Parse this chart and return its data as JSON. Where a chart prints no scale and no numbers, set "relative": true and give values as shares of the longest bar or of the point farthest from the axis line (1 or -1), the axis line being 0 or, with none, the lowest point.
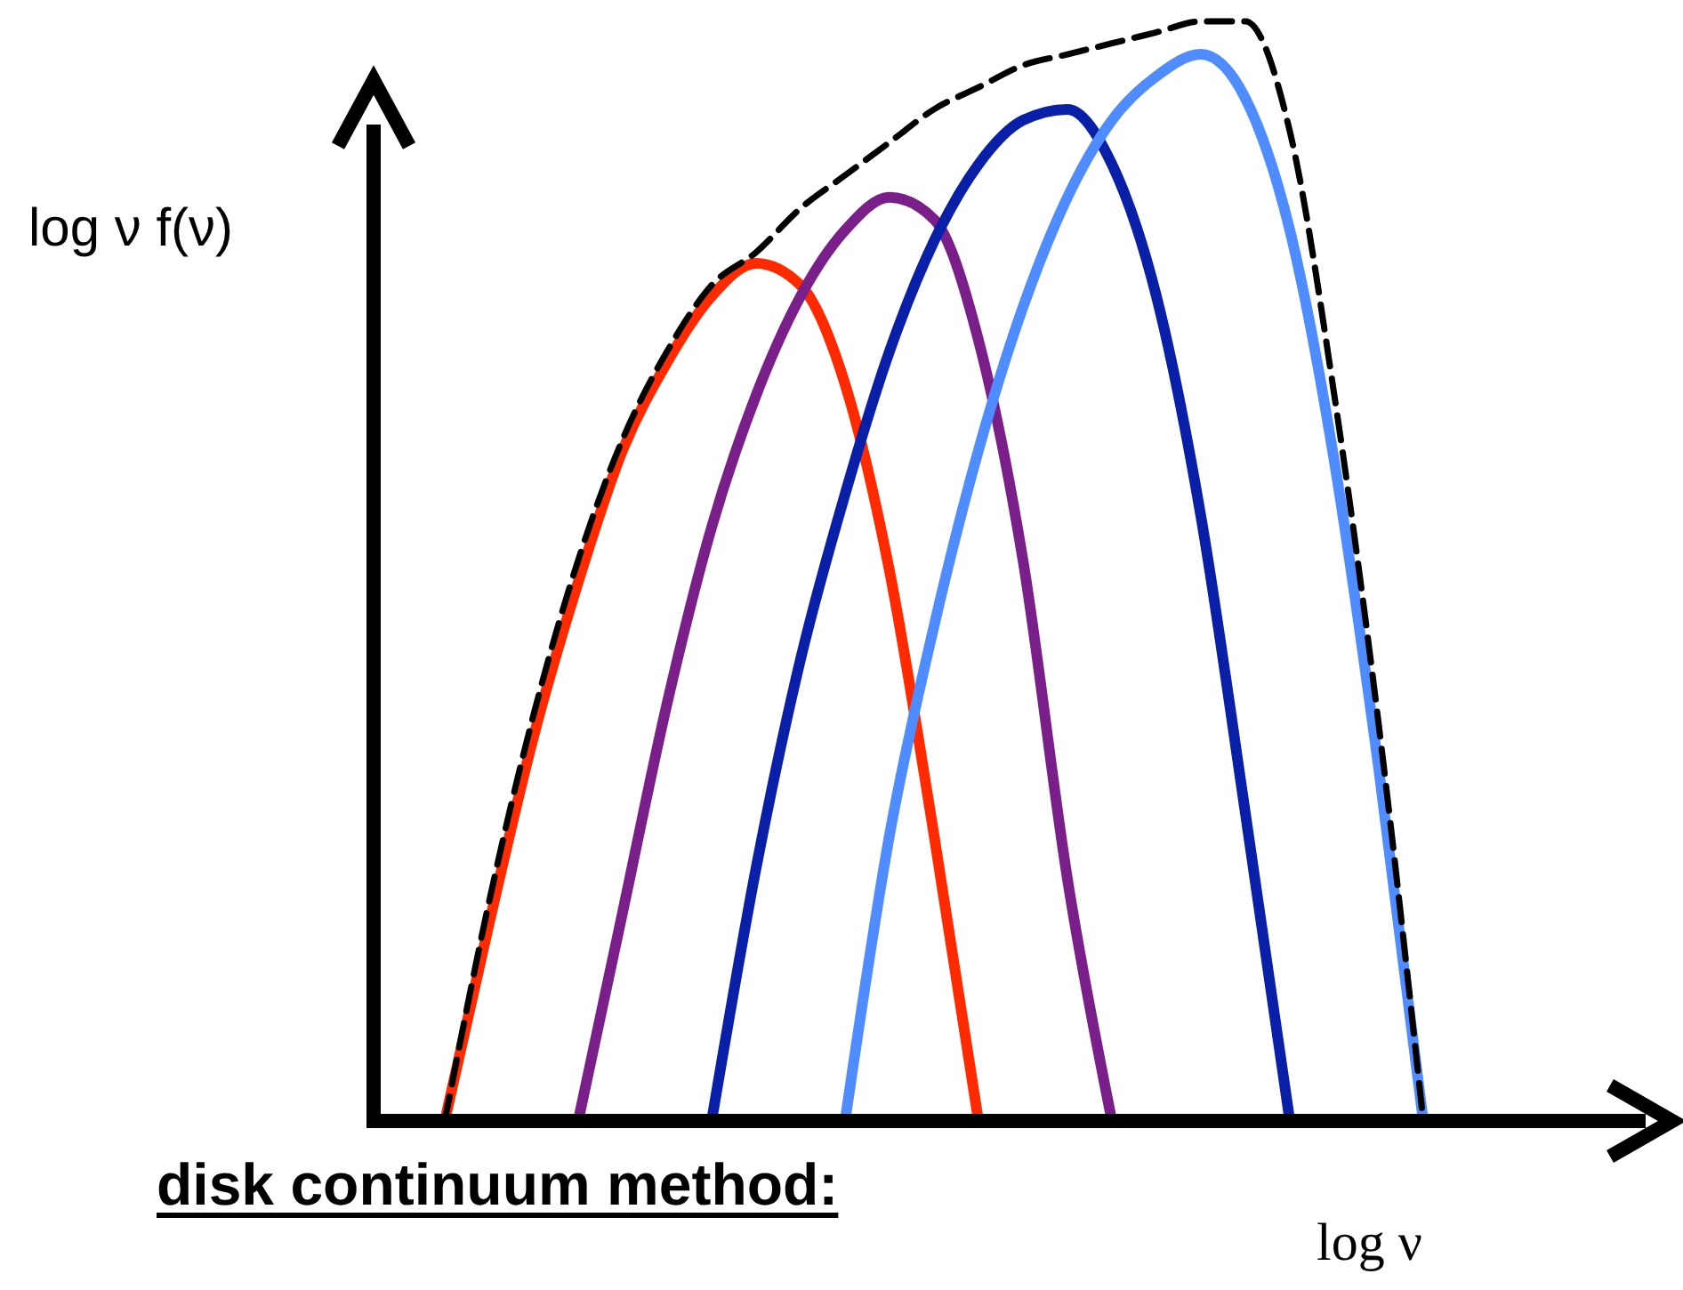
{
  "chart_data": {
    "type": "line",
    "relative": true,
    "ylabel": "log ν f(ν)",
    "xlabel": "log ν",
    "annotations": [
      "disk continuum method:"
    ],
    "categories": [
      null,
      null,
      null,
      null,
      null,
      null,
      null,
      null,
      null,
      null,
      null,
      null,
      null,
      null,
      null,
      null,
      null,
      null,
      null,
      null,
      null,
      null,
      null
    ],
    "series": [
      {
        "color": "#ff2a00",
        "values": [
          0,
          0.18,
          0.35,
          0.49,
          0.61,
          0.69,
          0.75,
          0.78,
          0.76,
          0.67,
          0.5,
          0.26,
          0,
          null,
          null,
          null,
          null,
          null,
          null,
          null,
          null,
          null,
          null
        ]
      },
      {
        "color": "#7a1f8a",
        "values": [
          null,
          null,
          null,
          0,
          0.19,
          0.38,
          0.54,
          0.66,
          0.75,
          0.81,
          0.84,
          0.82,
          0.71,
          0.51,
          0.22,
          0,
          null,
          null,
          null,
          null,
          null,
          null,
          null
        ]
      },
      {
        "color": "#0a1fa8",
        "values": [
          null,
          null,
          null,
          null,
          null,
          null,
          0,
          0.23,
          0.42,
          0.57,
          0.7,
          0.8,
          0.87,
          0.91,
          0.92,
          0.87,
          0.75,
          0.55,
          0.28,
          0,
          null,
          null,
          null
        ]
      },
      {
        "color": "#4f8cff",
        "values": [
          null,
          null,
          null,
          null,
          null,
          null,
          null,
          null,
          null,
          0,
          0.26,
          0.45,
          0.61,
          0.74,
          0.84,
          0.91,
          0.95,
          0.97,
          0.93,
          0.81,
          0.6,
          0.32,
          0
        ]
      },
      {
        "color": "#000000",
        "line_style": "dashed",
        "values": [
          0,
          0.2,
          0.37,
          0.51,
          0.62,
          0.7,
          0.76,
          0.79,
          0.83,
          0.86,
          0.89,
          0.92,
          0.94,
          0.96,
          0.97,
          0.98,
          0.99,
          1,
          1,
          0.9,
          0.66,
          0.36,
          0
        ]
      }
    ]
  }
}
